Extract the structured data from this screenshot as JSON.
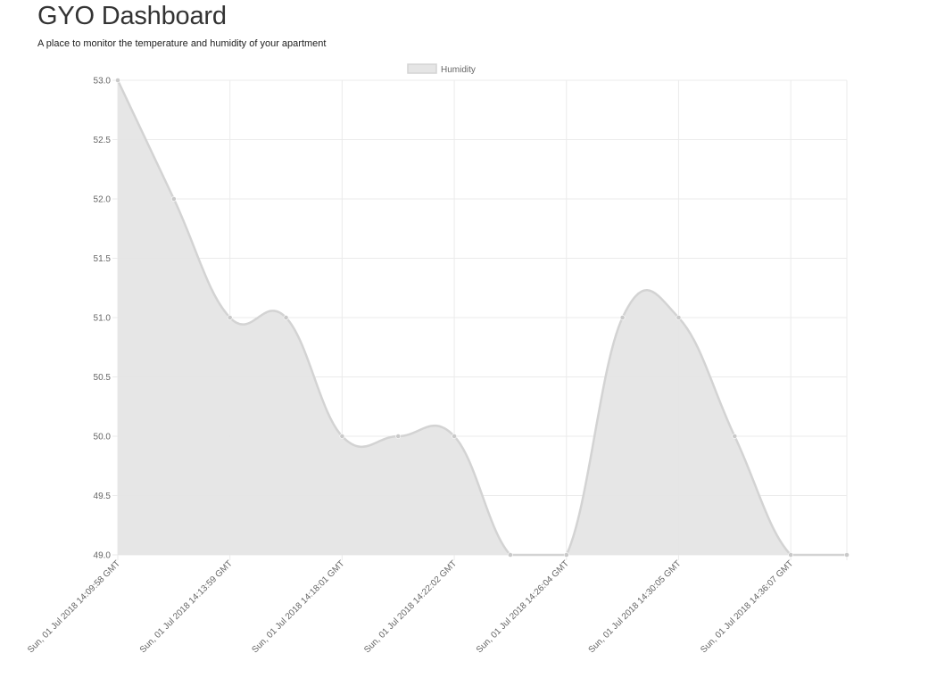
{
  "header": {
    "title": "GYO Dashboard",
    "subtitle": "A place to monitor the temperature and humidity of your apartment"
  },
  "chart_data": {
    "type": "line",
    "fill": true,
    "smooth": true,
    "title": "",
    "xlabel": "",
    "ylabel": "",
    "ylim": [
      49.0,
      53.0
    ],
    "y_ticks": [
      49.0,
      49.5,
      50.0,
      50.5,
      51.0,
      51.5,
      52.0,
      52.5,
      53.0
    ],
    "grid": true,
    "legend_position": "top-center",
    "colors": {
      "line": "#d3d3d3",
      "fill": "#e5e5e5",
      "point": "#c9c9c9",
      "grid": "#ebebeb"
    },
    "x_tick_labels": [
      "Sun, 01 Jul 2018 14:09:58 GMT",
      "Sun, 01 Jul 2018 14:13:59 GMT",
      "Sun, 01 Jul 2018 14:18:01 GMT",
      "Sun, 01 Jul 2018 14:22:02 GMT",
      "Sun, 01 Jul 2018 14:26:04 GMT",
      "Sun, 01 Jul 2018 14:30:05 GMT",
      "Sun, 01 Jul 2018 14:36:07 GMT"
    ],
    "series": [
      {
        "name": "Humidity",
        "values": [
          53,
          52,
          51,
          51,
          50,
          50,
          50,
          49,
          49,
          51,
          51,
          50,
          49,
          49
        ]
      }
    ]
  }
}
